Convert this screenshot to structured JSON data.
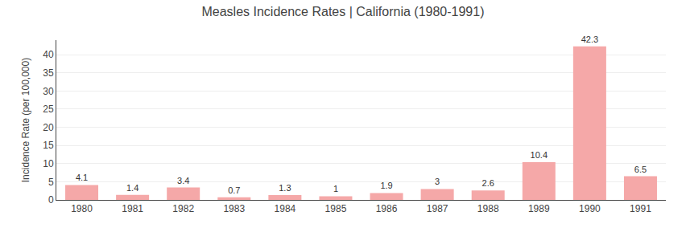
{
  "chart_data": {
    "type": "bar",
    "title": "Measles Incidence Rates | California (1980-1991)",
    "ylabel": "Incidence Rate (per 100,000)",
    "categories": [
      "1980",
      "1981",
      "1982",
      "1983",
      "1984",
      "1985",
      "1986",
      "1987",
      "1988",
      "1989",
      "1990",
      "1991"
    ],
    "values": [
      4.1,
      1.4,
      3.4,
      0.7,
      1.3,
      1.0,
      1.9,
      3.0,
      2.6,
      10.4,
      42.3,
      6.5
    ],
    "color": "#f5a8a8",
    "ylim": [
      0,
      44
    ],
    "yticks": [
      0,
      5,
      10,
      15,
      20,
      25,
      30,
      35,
      40
    ],
    "grid": true,
    "data_labels": true
  }
}
